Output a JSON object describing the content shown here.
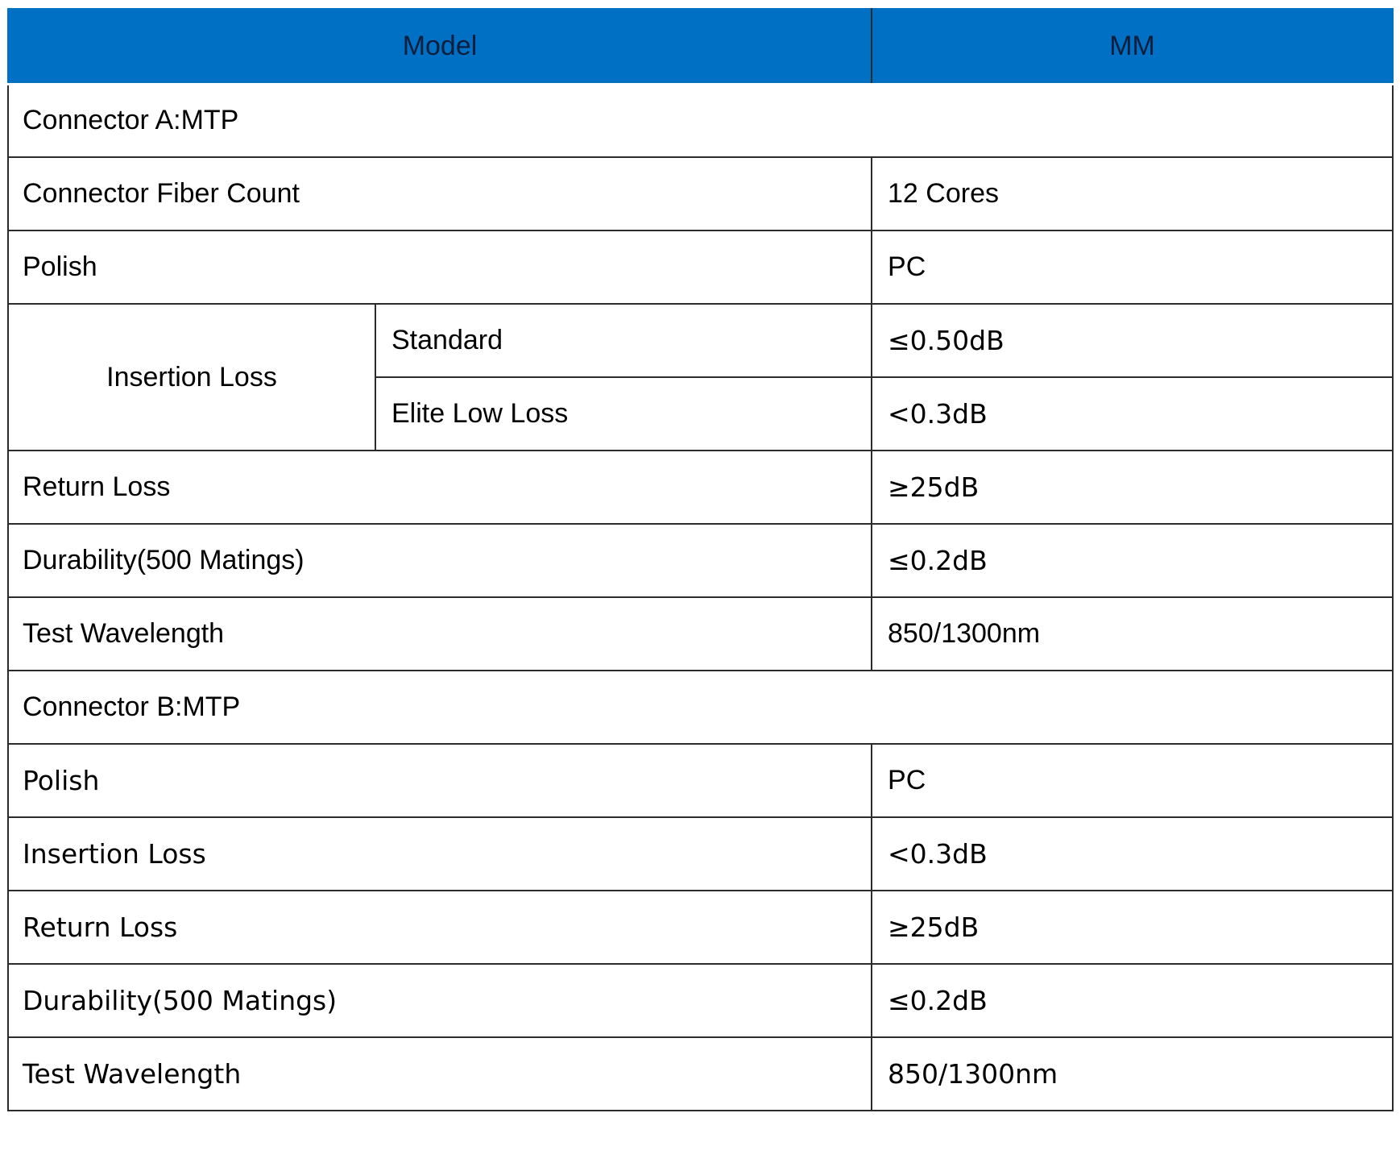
{
  "header": {
    "model": "Model",
    "mm": "MM"
  },
  "connector_a": {
    "section_label": "Connector A:MTP",
    "fiber_count": {
      "label": "Connector Fiber Count",
      "value": "12 Cores"
    },
    "polish": {
      "label": "Polish",
      "value": "PC"
    },
    "insertion_loss": {
      "label": "Insertion Loss",
      "standard": {
        "label": "Standard",
        "value": "≤0.50dB"
      },
      "elite": {
        "label": "Elite Low Loss",
        "value": "<0.3dB"
      }
    },
    "return_loss": {
      "label": "Return Loss",
      "value": "≥25dB"
    },
    "durability": {
      "label": "Durability(500 Matings)",
      "value": "≤0.2dB"
    },
    "test_wavelength": {
      "label": "Test Wavelength",
      "value": "850/1300nm"
    }
  },
  "connector_b": {
    "section_label": "Connector B:MTP",
    "polish": {
      "label": "Polish",
      "value": "PC"
    },
    "insertion_loss": {
      "label": "Insertion Loss",
      "value": "<0.3dB"
    },
    "return_loss": {
      "label": "Return Loss",
      "value": "≥25dB"
    },
    "durability": {
      "label": "Durability(500 Matings)",
      "value": "≤0.2dB"
    },
    "test_wavelength": {
      "label": "Test Wavelength",
      "value": "850/1300nm"
    }
  },
  "colors": {
    "header_bg": "#0070c4",
    "header_text": "#0c1e3c",
    "border": "#2b2b2b"
  }
}
